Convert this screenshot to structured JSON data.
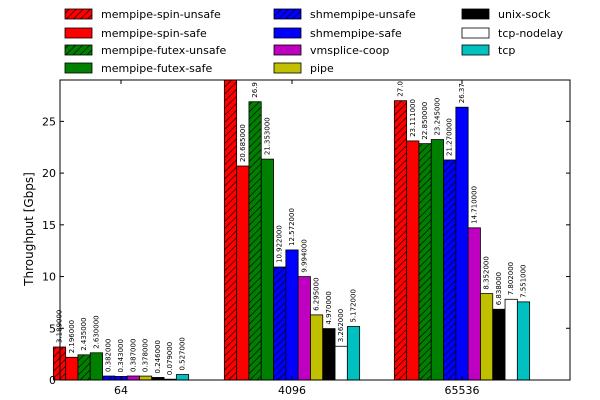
{
  "chart_data": {
    "type": "bar",
    "ylabel": "Throughput [Gbps]",
    "xlabel": "",
    "ylim": [
      0,
      29
    ],
    "yticks": [
      0,
      5,
      10,
      15,
      20,
      25
    ],
    "categories": [
      "64",
      "4096",
      "65536"
    ],
    "legend_position": "top",
    "grid": false,
    "series": [
      {
        "name": "mempipe-spin-unsafe",
        "color": "#ff0000",
        "hatch": true,
        "values": [
          3.189,
          29.7,
          27.0
        ],
        "labels": [
          "3.189000",
          "",
          "27.0"
        ]
      },
      {
        "name": "mempipe-spin-safe",
        "color": "#ff0000",
        "hatch": false,
        "values": [
          2.196,
          20.685,
          23.111
        ],
        "labels": [
          "2.196000",
          "20.685000",
          "23.111000"
        ]
      },
      {
        "name": "mempipe-futex-unsafe",
        "color": "#008000",
        "hatch": true,
        "values": [
          2.435,
          26.9,
          22.85
        ],
        "labels": [
          "2.435000",
          "26.9",
          "22.850000"
        ]
      },
      {
        "name": "mempipe-futex-safe",
        "color": "#008000",
        "hatch": false,
        "values": [
          2.63,
          21.353,
          23.245
        ],
        "labels": [
          "2.630000",
          "21.353000",
          "23.245000"
        ]
      },
      {
        "name": "shmempipe-unsafe",
        "color": "#0000ff",
        "hatch": true,
        "values": [
          0.382,
          10.922,
          21.27
        ],
        "labels": [
          "0.382000",
          "10.922000",
          "21.270000"
        ]
      },
      {
        "name": "shmempipe-safe",
        "color": "#0000ff",
        "hatch": false,
        "values": [
          0.343,
          12.572,
          26.37
        ],
        "labels": [
          "0.343000",
          "12.572000",
          "26.37"
        ]
      },
      {
        "name": "vmsplice-coop",
        "color": "#c000c0",
        "hatch": false,
        "values": [
          0.387,
          9.994,
          14.71
        ],
        "labels": [
          "0.387000",
          "9.994000",
          "14.710000"
        ]
      },
      {
        "name": "pipe",
        "color": "#c0c000",
        "hatch": false,
        "values": [
          0.378,
          6.295,
          8.352
        ],
        "labels": [
          "0.378000",
          "6.295000",
          "8.352000"
        ]
      },
      {
        "name": "unix-sock",
        "color": "#000000",
        "hatch": false,
        "values": [
          0.246,
          4.97,
          6.838
        ],
        "labels": [
          "0.246000",
          "4.970000",
          "6.838000"
        ]
      },
      {
        "name": "tcp-nodelay",
        "color": "#ffffff",
        "hatch": false,
        "values": [
          0.079,
          3.262,
          7.802
        ],
        "labels": [
          "0.079000",
          "3.262000",
          "7.802000"
        ]
      },
      {
        "name": "tcp",
        "color": "#00c0c0",
        "hatch": false,
        "values": [
          0.527,
          5.172,
          7.551
        ],
        "labels": [
          "0.527000",
          "5.172000",
          "7.551000"
        ]
      }
    ]
  }
}
